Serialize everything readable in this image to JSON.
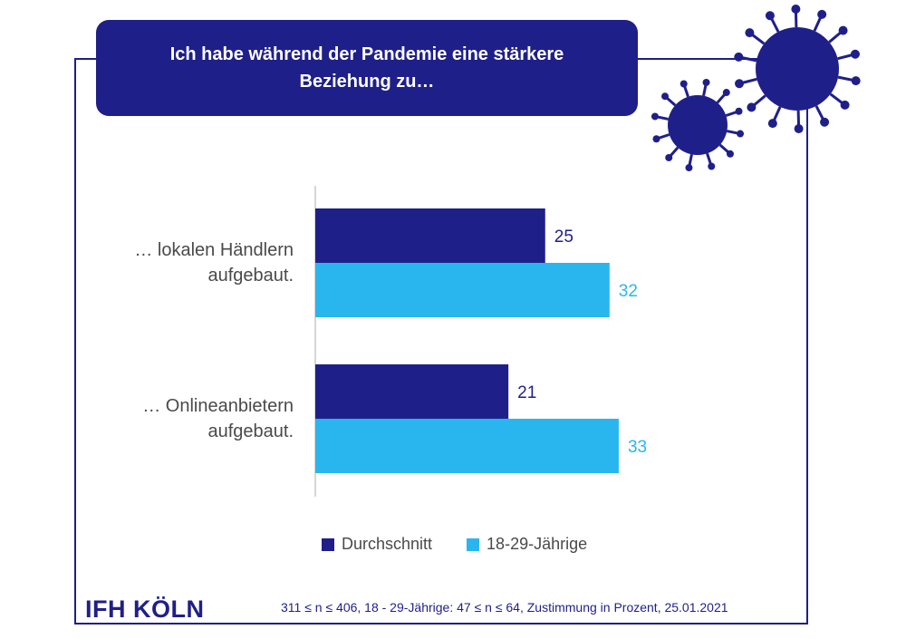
{
  "header": {
    "title_line1": "Ich habe während der Pandemie eine stärkere",
    "title_line2": "Beziehung zu…"
  },
  "colors": {
    "navy": "#1f1f8a",
    "light_blue": "#29b6ee",
    "label_gray": "#4a4a4a"
  },
  "chart_data": {
    "type": "bar",
    "orientation": "horizontal",
    "title": "Ich habe während der Pandemie eine stärkere Beziehung zu…",
    "categories": [
      {
        "line1": "… lokalen Händlern",
        "line2": "aufgebaut."
      },
      {
        "line1": "… Onlineanbietern",
        "line2": "aufgebaut."
      }
    ],
    "series": [
      {
        "name": "Durchschnitt",
        "color": "#1f1f8a",
        "values": [
          25,
          21
        ]
      },
      {
        "name": "18-29-Jährige",
        "color": "#29b6ee",
        "values": [
          32,
          33
        ]
      }
    ],
    "xlim": [
      0,
      35
    ],
    "legend_position": "bottom-center",
    "grid": false
  },
  "footer": {
    "brand": "IFH KÖLN",
    "note": "311 ≤ n ≤ 406, 18 - 29-Jährige: 47 ≤ n ≤ 64, Zustimmung in Prozent, 25.01.2021"
  },
  "decoration": {
    "icon": "coronavirus-icon"
  }
}
